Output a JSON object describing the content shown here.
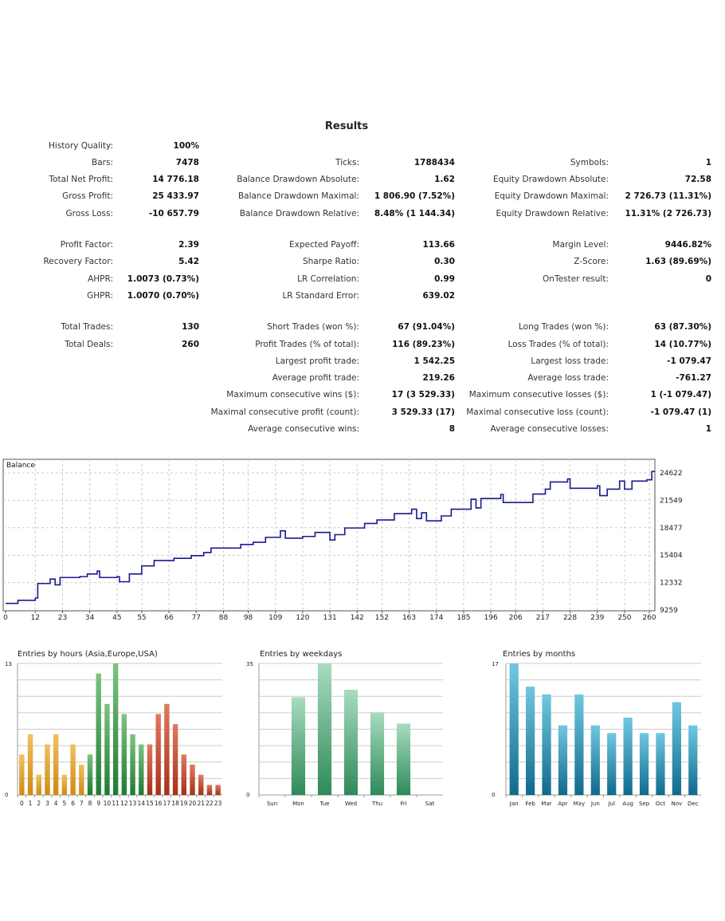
{
  "title": "Results",
  "rows": [
    [
      [
        "History Quality:",
        "100%"
      ],
      null,
      null
    ],
    [
      [
        "Bars:",
        "7478"
      ],
      [
        "Ticks:",
        "1788434"
      ],
      [
        "Symbols:",
        "1"
      ]
    ],
    [
      [
        "Total Net Profit:",
        "14 776.18"
      ],
      [
        "Balance Drawdown Absolute:",
        "1.62"
      ],
      [
        "Equity Drawdown Absolute:",
        "72.58"
      ]
    ],
    [
      [
        "Gross Profit:",
        "25 433.97"
      ],
      [
        "Balance Drawdown Maximal:",
        "1 806.90 (7.52%)"
      ],
      [
        "Equity Drawdown Maximal:",
        "2 726.73 (11.31%)"
      ]
    ],
    [
      [
        "Gross Loss:",
        "-10 657.79"
      ],
      [
        "Balance Drawdown Relative:",
        "8.48% (1 144.34)"
      ],
      [
        "Equity Drawdown Relative:",
        "11.31% (2 726.73)"
      ]
    ],
    [
      [
        "Profit Factor:",
        "2.39"
      ],
      [
        "Expected Payoff:",
        "113.66"
      ],
      [
        "Margin Level:",
        "9446.82%"
      ]
    ],
    [
      [
        "Recovery Factor:",
        "5.42"
      ],
      [
        "Sharpe Ratio:",
        "0.30"
      ],
      [
        "Z-Score:",
        "1.63 (89.69%)"
      ]
    ],
    [
      [
        "AHPR:",
        "1.0073 (0.73%)"
      ],
      [
        "LR Correlation:",
        "0.99"
      ],
      [
        "OnTester result:",
        "0"
      ]
    ],
    [
      [
        "GHPR:",
        "1.0070 (0.70%)"
      ],
      [
        "LR Standard Error:",
        "639.02"
      ],
      null
    ],
    [
      [
        "Total Trades:",
        "130"
      ],
      [
        "Short Trades (won %):",
        "67 (91.04%)"
      ],
      [
        "Long Trades (won %):",
        "63 (87.30%)"
      ]
    ],
    [
      [
        "Total Deals:",
        "260"
      ],
      [
        "Profit Trades (% of total):",
        "116 (89.23%)"
      ],
      [
        "Loss Trades (% of total):",
        "14 (10.77%)"
      ]
    ],
    [
      null,
      [
        "Largest profit trade:",
        "1 542.25"
      ],
      [
        "Largest loss trade:",
        "-1 079.47"
      ]
    ],
    [
      null,
      [
        "Average profit trade:",
        "219.26"
      ],
      [
        "Average loss trade:",
        "-761.27"
      ]
    ],
    [
      null,
      [
        "Maximum consecutive wins ($):",
        "17 (3 529.33)"
      ],
      [
        "Maximum consecutive losses ($):",
        "1 (-1 079.47)"
      ]
    ],
    [
      null,
      [
        "Maximal consecutive profit (count):",
        "3 529.33 (17)"
      ],
      [
        "Maximal consecutive loss (count):",
        "-1 079.47 (1)"
      ]
    ],
    [
      null,
      [
        "Average consecutive wins:",
        "8"
      ],
      [
        "Average consecutive losses:",
        "1"
      ]
    ]
  ],
  "chart_data": [
    {
      "type": "line",
      "title": "Balance",
      "color": "#1a1a8c",
      "grid": true,
      "x_ticks": [
        "0",
        "12",
        "23",
        "34",
        "45",
        "55",
        "66",
        "77",
        "88",
        "98",
        "109",
        "120",
        "131",
        "142",
        "152",
        "163",
        "174",
        "185",
        "196",
        "206",
        "217",
        "228",
        "239",
        "250",
        "260"
      ],
      "y_ticks": [
        "9259",
        "12332",
        "15404",
        "18477",
        "21549",
        "24622"
      ],
      "ylim": [
        9259,
        26330
      ],
      "xlim": [
        0,
        262
      ],
      "x": [
        0,
        5,
        12,
        13,
        18,
        20,
        22,
        30,
        33,
        37,
        38,
        45,
        46,
        50,
        55,
        60,
        68,
        75,
        80,
        83,
        95,
        100,
        105,
        111,
        113,
        120,
        125,
        130,
        131,
        133,
        137,
        145,
        150,
        157,
        164,
        166,
        168,
        170,
        176,
        180,
        188,
        190,
        192,
        200,
        201,
        210,
        213,
        218,
        220,
        227,
        228,
        239,
        240,
        243,
        248,
        250,
        253,
        259,
        261,
        262
      ],
      "y": [
        10000,
        10350,
        10600,
        12230,
        12730,
        12080,
        12900,
        13000,
        13300,
        13620,
        12900,
        13000,
        12430,
        13300,
        14200,
        14800,
        15050,
        15350,
        15700,
        16200,
        16600,
        16850,
        17400,
        18130,
        17300,
        17500,
        17950,
        17950,
        17100,
        17700,
        18450,
        18960,
        19350,
        20050,
        20550,
        19500,
        20150,
        19250,
        19800,
        20550,
        21670,
        20700,
        21750,
        22200,
        21300,
        21300,
        22250,
        22800,
        23600,
        23950,
        22900,
        23170,
        22070,
        22800,
        23700,
        22800,
        23700,
        23850,
        24780,
        24700
      ]
    },
    {
      "type": "bar",
      "title": "Entries by hours (Asia,Europe,USA)",
      "ylim": [
        0,
        13
      ],
      "y_ticks": [
        "0",
        "13"
      ],
      "categories": [
        "0",
        "1",
        "2",
        "3",
        "4",
        "5",
        "6",
        "7",
        "8",
        "9",
        "10",
        "11",
        "12",
        "13",
        "14",
        "15",
        "16",
        "17",
        "18",
        "19",
        "20",
        "21",
        "22",
        "23"
      ],
      "values": [
        4,
        6,
        2,
        5,
        6,
        2,
        5,
        3,
        4,
        12,
        9,
        13,
        8,
        6,
        5,
        5,
        8,
        9,
        7,
        4,
        3,
        2,
        1,
        1
      ],
      "colors": {
        "Asia": "#e0a030",
        "Europe": "#3a9a45",
        "USA": "#c04a30"
      }
    },
    {
      "type": "bar",
      "title": "Entries by weekdays",
      "ylim": [
        0,
        35
      ],
      "y_ticks": [
        "0",
        "35"
      ],
      "categories": [
        "Sun",
        "Mon",
        "Tue",
        "Wed",
        "Thu",
        "Fri",
        "Sat"
      ],
      "values": [
        0,
        26,
        35,
        28,
        22,
        19,
        0
      ],
      "color": "#4aa571"
    },
    {
      "type": "bar",
      "title": "Entries by months",
      "ylim": [
        0,
        17
      ],
      "y_ticks": [
        "0",
        "17"
      ],
      "categories": [
        "Jan",
        "Feb",
        "Mar",
        "Apr",
        "May",
        "Jun",
        "Jul",
        "Aug",
        "Sep",
        "Oct",
        "Nov",
        "Dec"
      ],
      "values": [
        17,
        14,
        13,
        9,
        13,
        9,
        8,
        10,
        8,
        8,
        12,
        9
      ],
      "color": "#2a90b0"
    }
  ]
}
